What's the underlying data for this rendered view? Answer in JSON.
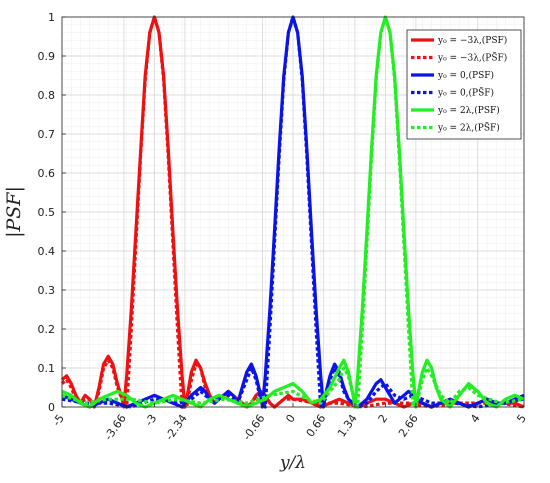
{
  "chart_data": {
    "type": "line",
    "xlabel": "y/λ",
    "ylabel": "|PSF|",
    "xlim": [
      -5,
      5
    ],
    "ylim": [
      0,
      1
    ],
    "grid": "on (major and minor)",
    "legend_position": "top-right",
    "xticks": [
      -5,
      -3.66,
      -3,
      -2.34,
      -0.66,
      0,
      0.66,
      1.34,
      2,
      2.66,
      4,
      5
    ],
    "xtick_labels": [
      "-5",
      "-3.66",
      "-3",
      "-2.34",
      "-0.66",
      "0",
      "0.66",
      "1.34",
      "2",
      "2.66",
      "4",
      "5"
    ],
    "yticks": [
      0,
      0.1,
      0.2,
      0.3,
      0.4,
      0.5,
      0.6,
      0.7,
      0.8,
      0.9,
      1
    ],
    "ytick_labels": [
      "0",
      "0.1",
      "0.2",
      "0.3",
      "0.4",
      "0.5",
      "0.6",
      "0.7",
      "0.8",
      "0.9",
      "1"
    ],
    "series": [
      {
        "name": "y₀ = −3λ,(PSF)",
        "color": "#ee1111",
        "style": "solid",
        "x": [
          -5,
          -4.9,
          -4.8,
          -4.7,
          -4.6,
          -4.5,
          -4.4,
          -4.3,
          -4.2,
          -4.1,
          -4.0,
          -3.9,
          -3.8,
          -3.7,
          -3.66,
          -3.6,
          -3.5,
          -3.4,
          -3.3,
          -3.2,
          -3.1,
          -3.0,
          -2.9,
          -2.8,
          -2.7,
          -2.6,
          -2.5,
          -2.4,
          -2.34,
          -2.3,
          -2.2,
          -2.1,
          -2.0,
          -1.9,
          -1.8,
          -1.7,
          -1.6,
          -1.5,
          -1.4,
          -1.3,
          -1.2,
          -1.1,
          -1.0,
          -0.9,
          -0.8,
          -0.7,
          -0.6,
          -0.5,
          -0.4,
          -0.3,
          -0.2,
          -0.1,
          0.0,
          0.2,
          0.4,
          0.6,
          0.8,
          1.0,
          1.2,
          1.4,
          1.6,
          1.8,
          2.0,
          2.2,
          2.4,
          2.6,
          2.8,
          3.0,
          3.2,
          3.4,
          3.6,
          3.8,
          4.0,
          4.2,
          4.4,
          4.6,
          4.8,
          5.0
        ],
        "values": [
          0.07,
          0.08,
          0.06,
          0.03,
          0.01,
          0.03,
          0.02,
          0.0,
          0.05,
          0.11,
          0.13,
          0.11,
          0.06,
          0.02,
          0.0,
          0.08,
          0.25,
          0.45,
          0.65,
          0.85,
          0.96,
          1.0,
          0.96,
          0.85,
          0.66,
          0.45,
          0.25,
          0.08,
          0.0,
          0.02,
          0.09,
          0.12,
          0.1,
          0.06,
          0.03,
          0.01,
          0.02,
          0.03,
          0.04,
          0.03,
          0.02,
          0.01,
          0.0,
          0.01,
          0.03,
          0.04,
          0.03,
          0.01,
          0.0,
          0.01,
          0.02,
          0.03,
          0.02,
          0.02,
          0.01,
          0.0,
          0.01,
          0.02,
          0.01,
          0.0,
          0.01,
          0.02,
          0.02,
          0.01,
          0.0,
          0.01,
          0.01,
          0.0,
          0.01,
          0.02,
          0.01,
          0.0,
          0.01,
          0.02,
          0.01,
          0.01,
          0.01,
          0.0
        ]
      },
      {
        "name": "y₀ = −3λ,(PS̃F)",
        "color": "#ee1111",
        "style": "dotted",
        "x": [
          -5,
          -4.9,
          -4.8,
          -4.7,
          -4.6,
          -4.5,
          -4.4,
          -4.3,
          -4.2,
          -4.1,
          -4.0,
          -3.9,
          -3.8,
          -3.7,
          -3.6,
          -3.5,
          -3.4,
          -3.3,
          -3.2,
          -3.1,
          -3.0,
          -2.9,
          -2.8,
          -2.7,
          -2.6,
          -2.5,
          -2.4,
          -2.3,
          -2.2,
          -2.1,
          -2.0,
          -1.9,
          -1.8,
          -1.7,
          -1.6,
          -1.5,
          -1.4,
          -1.3,
          -1.2,
          -1.1,
          -1.0,
          -0.9,
          -0.8,
          -0.7,
          -0.6,
          -0.5,
          -0.4,
          -0.2,
          0.0,
          0.5,
          1.0,
          1.5,
          2.0,
          2.5,
          3.0,
          3.5,
          4.0,
          4.5,
          5.0
        ],
        "values": [
          0.06,
          0.07,
          0.05,
          0.02,
          0.01,
          0.02,
          0.02,
          0.0,
          0.04,
          0.1,
          0.12,
          0.1,
          0.05,
          0.02,
          0.0,
          0.2,
          0.42,
          0.64,
          0.84,
          0.96,
          1.0,
          0.96,
          0.84,
          0.64,
          0.42,
          0.2,
          0.0,
          0.0,
          0.07,
          0.11,
          0.1,
          0.05,
          0.02,
          0.01,
          0.02,
          0.03,
          0.03,
          0.03,
          0.02,
          0.01,
          0.0,
          0.01,
          0.02,
          0.03,
          0.03,
          0.01,
          0.0,
          0.02,
          0.02,
          0.01,
          0.01,
          0.0,
          0.01,
          0.01,
          0.0,
          0.01,
          0.01,
          0.01,
          0.0
        ]
      },
      {
        "name": "y₀ = 0,(PSF)",
        "color": "#0a14e6",
        "style": "solid",
        "x": [
          -5,
          -4.8,
          -4.6,
          -4.4,
          -4.2,
          -4.0,
          -3.8,
          -3.6,
          -3.4,
          -3.2,
          -3.0,
          -2.8,
          -2.6,
          -2.4,
          -2.2,
          -2.0,
          -1.9,
          -1.8,
          -1.7,
          -1.6,
          -1.5,
          -1.4,
          -1.3,
          -1.2,
          -1.1,
          -1.0,
          -0.9,
          -0.8,
          -0.7,
          -0.66,
          -0.6,
          -0.5,
          -0.4,
          -0.3,
          -0.2,
          -0.1,
          0.0,
          0.1,
          0.2,
          0.3,
          0.4,
          0.5,
          0.6,
          0.66,
          0.7,
          0.8,
          0.9,
          1.0,
          1.1,
          1.2,
          1.3,
          1.4,
          1.5,
          1.6,
          1.7,
          1.8,
          1.9,
          2.0,
          2.1,
          2.2,
          2.3,
          2.4,
          2.5,
          2.6,
          2.8,
          3.0,
          3.2,
          3.4,
          3.6,
          3.8,
          4.0,
          4.2,
          4.4,
          4.6,
          4.8,
          5.0
        ],
        "values": [
          0.03,
          0.02,
          0.01,
          0.0,
          0.01,
          0.02,
          0.01,
          0.0,
          0.01,
          0.02,
          0.03,
          0.02,
          0.01,
          0.0,
          0.03,
          0.05,
          0.04,
          0.02,
          0.01,
          0.02,
          0.03,
          0.04,
          0.03,
          0.01,
          0.05,
          0.09,
          0.11,
          0.08,
          0.03,
          0.0,
          0.08,
          0.25,
          0.45,
          0.66,
          0.85,
          0.96,
          1.0,
          0.96,
          0.85,
          0.66,
          0.45,
          0.25,
          0.08,
          0.0,
          0.03,
          0.08,
          0.11,
          0.09,
          0.05,
          0.02,
          0.01,
          0.0,
          0.01,
          0.02,
          0.04,
          0.06,
          0.07,
          0.05,
          0.03,
          0.01,
          0.02,
          0.03,
          0.04,
          0.03,
          0.01,
          0.0,
          0.01,
          0.02,
          0.01,
          0.0,
          0.01,
          0.02,
          0.01,
          0.01,
          0.02,
          0.03
        ]
      },
      {
        "name": "y₀ = 0,(PS̃F)",
        "color": "#0a14e6",
        "style": "dotted",
        "x": [
          -5,
          -4.5,
          -4.0,
          -3.5,
          -3.0,
          -2.5,
          -2.2,
          -2.0,
          -1.8,
          -1.6,
          -1.4,
          -1.2,
          -1.0,
          -0.9,
          -0.8,
          -0.7,
          -0.6,
          -0.5,
          -0.4,
          -0.3,
          -0.2,
          -0.1,
          0.0,
          0.1,
          0.2,
          0.3,
          0.4,
          0.5,
          0.6,
          0.7,
          0.8,
          0.9,
          1.0,
          1.1,
          1.2,
          1.4,
          1.6,
          1.8,
          2.0,
          2.2,
          2.4,
          2.6,
          3.0,
          3.5,
          4.0,
          4.5,
          5.0
        ],
        "values": [
          0.02,
          0.01,
          0.01,
          0.0,
          0.02,
          0.01,
          0.02,
          0.04,
          0.02,
          0.02,
          0.03,
          0.01,
          0.07,
          0.1,
          0.07,
          0.02,
          0.0,
          0.2,
          0.42,
          0.64,
          0.84,
          0.96,
          1.0,
          0.96,
          0.84,
          0.64,
          0.42,
          0.2,
          0.0,
          0.02,
          0.07,
          0.1,
          0.08,
          0.04,
          0.02,
          0.0,
          0.01,
          0.04,
          0.06,
          0.03,
          0.02,
          0.03,
          0.01,
          0.01,
          0.0,
          0.01,
          0.02
        ]
      },
      {
        "name": "y₀ = 2λ,(PSF)",
        "color": "#22ee22",
        "style": "solid",
        "x": [
          -5,
          -4.8,
          -4.6,
          -4.4,
          -4.2,
          -4.0,
          -3.8,
          -3.6,
          -3.4,
          -3.2,
          -3.0,
          -2.8,
          -2.6,
          -2.4,
          -2.2,
          -2.0,
          -1.8,
          -1.6,
          -1.4,
          -1.2,
          -1.0,
          -0.8,
          -0.6,
          -0.4,
          -0.2,
          0.0,
          0.2,
          0.4,
          0.6,
          0.8,
          1.0,
          1.1,
          1.2,
          1.3,
          1.34,
          1.4,
          1.5,
          1.6,
          1.7,
          1.8,
          1.9,
          2.0,
          2.1,
          2.2,
          2.3,
          2.4,
          2.5,
          2.6,
          2.66,
          2.7,
          2.8,
          2.9,
          3.0,
          3.1,
          3.2,
          3.4,
          3.6,
          3.8,
          4.0,
          4.2,
          4.4,
          4.6,
          4.8,
          5.0
        ],
        "values": [
          0.04,
          0.03,
          0.01,
          0.0,
          0.02,
          0.03,
          0.04,
          0.03,
          0.01,
          0.0,
          0.01,
          0.02,
          0.03,
          0.02,
          0.01,
          0.0,
          0.02,
          0.03,
          0.02,
          0.01,
          0.0,
          0.01,
          0.02,
          0.04,
          0.05,
          0.06,
          0.04,
          0.01,
          0.02,
          0.05,
          0.1,
          0.12,
          0.09,
          0.03,
          0.0,
          0.08,
          0.25,
          0.45,
          0.66,
          0.85,
          0.96,
          1.0,
          0.96,
          0.85,
          0.66,
          0.45,
          0.25,
          0.08,
          0.0,
          0.03,
          0.09,
          0.12,
          0.1,
          0.05,
          0.02,
          0.0,
          0.03,
          0.06,
          0.04,
          0.01,
          0.0,
          0.02,
          0.03,
          0.02
        ]
      },
      {
        "name": "y₀ = 2λ,(PS̃F)",
        "color": "#22ee22",
        "style": "dotted",
        "x": [
          -5,
          -4.5,
          -4.0,
          -3.5,
          -3.0,
          -2.5,
          -2.0,
          -1.5,
          -1.0,
          -0.5,
          0.0,
          0.3,
          0.6,
          0.8,
          1.0,
          1.1,
          1.2,
          1.3,
          1.4,
          1.5,
          1.6,
          1.7,
          1.8,
          1.9,
          2.0,
          2.1,
          2.2,
          2.3,
          2.4,
          2.5,
          2.6,
          2.7,
          2.8,
          2.9,
          3.0,
          3.2,
          3.4,
          3.6,
          3.8,
          4.0,
          4.5,
          5.0
        ],
        "values": [
          0.03,
          0.01,
          0.02,
          0.02,
          0.01,
          0.02,
          0.01,
          0.02,
          0.01,
          0.03,
          0.04,
          0.02,
          0.01,
          0.04,
          0.07,
          0.1,
          0.08,
          0.03,
          0.0,
          0.2,
          0.42,
          0.64,
          0.84,
          0.96,
          1.0,
          0.96,
          0.84,
          0.64,
          0.42,
          0.2,
          0.0,
          0.02,
          0.07,
          0.1,
          0.08,
          0.03,
          0.01,
          0.04,
          0.05,
          0.03,
          0.01,
          0.02
        ]
      }
    ]
  }
}
